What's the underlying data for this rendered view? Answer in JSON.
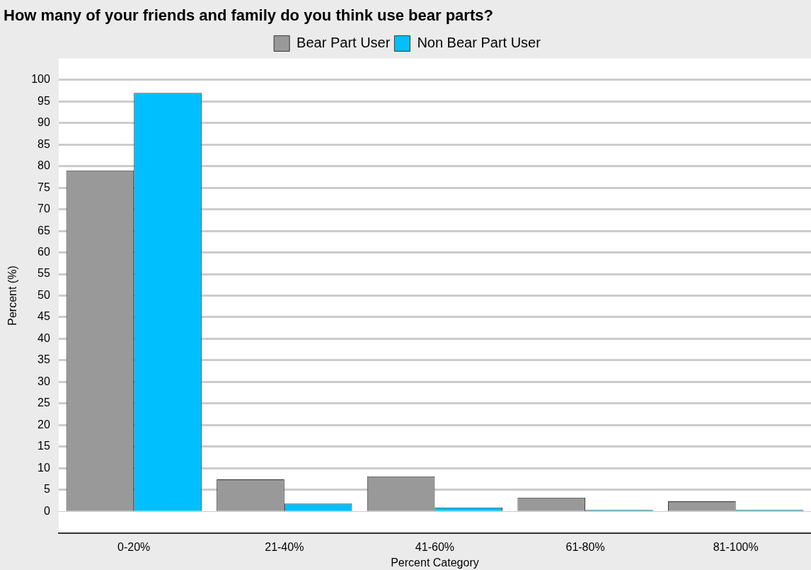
{
  "chart_data": {
    "type": "bar",
    "title": "How many of your friends and family do you think use bear parts?",
    "xlabel": "Percent Category",
    "ylabel": "Percent (%)",
    "categories": [
      "0-20%",
      "21-40%",
      "41-60%",
      "61-80%",
      "81-100%"
    ],
    "series": [
      {
        "name": "Bear Part User",
        "color": "#999999",
        "values": [
          79,
          7.4,
          8.1,
          3.2,
          2.3
        ]
      },
      {
        "name": "Non Bear Part User",
        "color": "#00bfff",
        "values": [
          97,
          1.8,
          0.9,
          0.3,
          0.3
        ]
      }
    ],
    "ylim": [
      -5,
      105
    ],
    "yticks": [
      0,
      5,
      10,
      15,
      20,
      25,
      30,
      35,
      40,
      45,
      50,
      55,
      60,
      65,
      70,
      75,
      80,
      85,
      90,
      95,
      100
    ],
    "grid": "y",
    "legend": "top"
  }
}
